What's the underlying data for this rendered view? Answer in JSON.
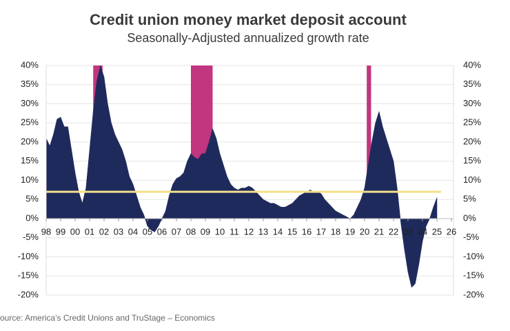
{
  "chart_data": {
    "type": "area",
    "title": "Credit union money market deposit account",
    "subtitle": "Seasonally-Adjusted annualized growth rate",
    "source": "Source: America’s Credit Unions and TruStage – Economics",
    "x": [
      1998,
      1998.25,
      1998.5,
      1998.75,
      1999,
      1999.25,
      1999.5,
      1999.75,
      2000,
      2000.25,
      2000.5,
      2000.75,
      2001,
      2001.25,
      2001.5,
      2001.75,
      2002,
      2002.25,
      2002.5,
      2002.75,
      2003,
      2003.25,
      2003.5,
      2003.75,
      2004,
      2004.25,
      2004.5,
      2004.75,
      2005,
      2005.25,
      2005.5,
      2005.75,
      2006,
      2006.25,
      2006.5,
      2006.75,
      2007,
      2007.25,
      2007.5,
      2007.75,
      2008,
      2008.25,
      2008.5,
      2008.75,
      2009,
      2009.25,
      2009.5,
      2009.75,
      2010,
      2010.25,
      2010.5,
      2010.75,
      2011,
      2011.25,
      2011.5,
      2011.75,
      2012,
      2012.25,
      2012.5,
      2012.75,
      2013,
      2013.25,
      2013.5,
      2013.75,
      2014,
      2014.25,
      2014.5,
      2014.75,
      2015,
      2015.25,
      2015.5,
      2015.75,
      2016,
      2016.25,
      2016.5,
      2016.75,
      2017,
      2017.25,
      2017.5,
      2017.75,
      2018,
      2018.25,
      2018.5,
      2018.75,
      2019,
      2019.25,
      2019.5,
      2019.75,
      2020,
      2020.25,
      2020.5,
      2020.75,
      2021,
      2021.25,
      2021.5,
      2021.75,
      2022,
      2022.25,
      2022.5,
      2022.75,
      2023,
      2023.25,
      2023.5,
      2023.75,
      2024,
      2024.25,
      2024.5,
      2024.75,
      2025
    ],
    "series": [
      {
        "name": "Growth rate",
        "color": "#1f2a5c",
        "values": [
          21,
          19,
          22,
          26,
          26.5,
          24,
          24,
          18,
          12,
          7,
          4,
          8,
          18,
          28,
          36,
          40,
          37,
          30,
          25,
          22,
          20,
          18,
          15,
          11,
          9,
          6,
          3,
          1,
          -2,
          -3,
          -3.5,
          -2,
          0,
          2,
          6,
          9,
          10.5,
          11,
          12,
          15,
          17,
          16,
          15.5,
          17,
          17,
          20,
          23.5,
          21,
          17,
          14,
          11,
          9,
          8,
          7.5,
          8,
          8,
          8.5,
          8,
          7,
          6,
          5,
          4.5,
          4,
          4,
          3.5,
          3,
          3,
          3.5,
          4,
          5,
          6,
          6.5,
          7,
          7.5,
          7,
          7,
          6.5,
          5,
          4,
          3,
          2,
          1.5,
          1,
          0.5,
          0,
          1,
          3,
          5,
          8,
          14,
          20,
          25,
          28,
          24,
          21,
          18,
          15,
          8,
          -1,
          -8,
          -14,
          -18,
          -17,
          -12,
          -6,
          -2,
          0,
          3,
          5.5
        ]
      }
    ],
    "shaded_regions": [
      {
        "start": 2001.25,
        "end": 2001.9,
        "color": "#c2357f"
      },
      {
        "start": 2008,
        "end": 2009.5,
        "color": "#c2357f"
      },
      {
        "start": 2020.15,
        "end": 2020.45,
        "color": "#c2357f"
      }
    ],
    "reference_line": {
      "value": 7,
      "color": "#f3e08a"
    },
    "xlim": [
      1998,
      2026
    ],
    "xticks": [
      {
        "value": 1998,
        "label": "98"
      },
      {
        "value": 1999,
        "label": "99"
      },
      {
        "value": 2000,
        "label": "00"
      },
      {
        "value": 2001,
        "label": "01"
      },
      {
        "value": 2002,
        "label": "02"
      },
      {
        "value": 2003,
        "label": "03"
      },
      {
        "value": 2004,
        "label": "04"
      },
      {
        "value": 2005,
        "label": "05"
      },
      {
        "value": 2006,
        "label": "06"
      },
      {
        "value": 2007,
        "label": "07"
      },
      {
        "value": 2008,
        "label": "08"
      },
      {
        "value": 2009,
        "label": "09"
      },
      {
        "value": 2010,
        "label": "10"
      },
      {
        "value": 2011,
        "label": "11"
      },
      {
        "value": 2012,
        "label": "12"
      },
      {
        "value": 2013,
        "label": "13"
      },
      {
        "value": 2014,
        "label": "14"
      },
      {
        "value": 2015,
        "label": "15"
      },
      {
        "value": 2016,
        "label": "16"
      },
      {
        "value": 2017,
        "label": "17"
      },
      {
        "value": 2018,
        "label": "18"
      },
      {
        "value": 2019,
        "label": "19"
      },
      {
        "value": 2020,
        "label": "20"
      },
      {
        "value": 2021,
        "label": "21"
      },
      {
        "value": 2022,
        "label": "22"
      },
      {
        "value": 2023,
        "label": "23"
      },
      {
        "value": 2024,
        "label": "24"
      },
      {
        "value": 2025,
        "label": "25"
      },
      {
        "value": 2026,
        "label": "26"
      }
    ],
    "ylim": [
      -20,
      40
    ],
    "yticks": [
      {
        "value": -20,
        "label": "-20%"
      },
      {
        "value": -15,
        "label": "-15%"
      },
      {
        "value": -10,
        "label": "-10%"
      },
      {
        "value": -5,
        "label": "-5%"
      },
      {
        "value": 0,
        "label": "0%"
      },
      {
        "value": 5,
        "label": "5%"
      },
      {
        "value": 10,
        "label": "10%"
      },
      {
        "value": 15,
        "label": "15%"
      },
      {
        "value": 20,
        "label": "20%"
      },
      {
        "value": 25,
        "label": "25%"
      },
      {
        "value": 30,
        "label": "30%"
      },
      {
        "value": 35,
        "label": "35%"
      },
      {
        "value": 40,
        "label": "40%"
      }
    ],
    "y2lim": [
      -20,
      40
    ],
    "y2ticks": [
      {
        "value": -20,
        "label": "-20%"
      },
      {
        "value": -15,
        "label": "-15%"
      },
      {
        "value": -10,
        "label": "-10%"
      },
      {
        "value": -5,
        "label": "-5%"
      },
      {
        "value": 0,
        "label": "0%"
      },
      {
        "value": 5,
        "label": "5%"
      },
      {
        "value": 10,
        "label": "10%"
      },
      {
        "value": 15,
        "label": "15%"
      },
      {
        "value": 20,
        "label": "20%"
      },
      {
        "value": 25,
        "label": "25%"
      },
      {
        "value": 30,
        "label": "30%"
      },
      {
        "value": 35,
        "label": "35%"
      },
      {
        "value": 40,
        "label": "40%"
      }
    ],
    "grid": true
  }
}
